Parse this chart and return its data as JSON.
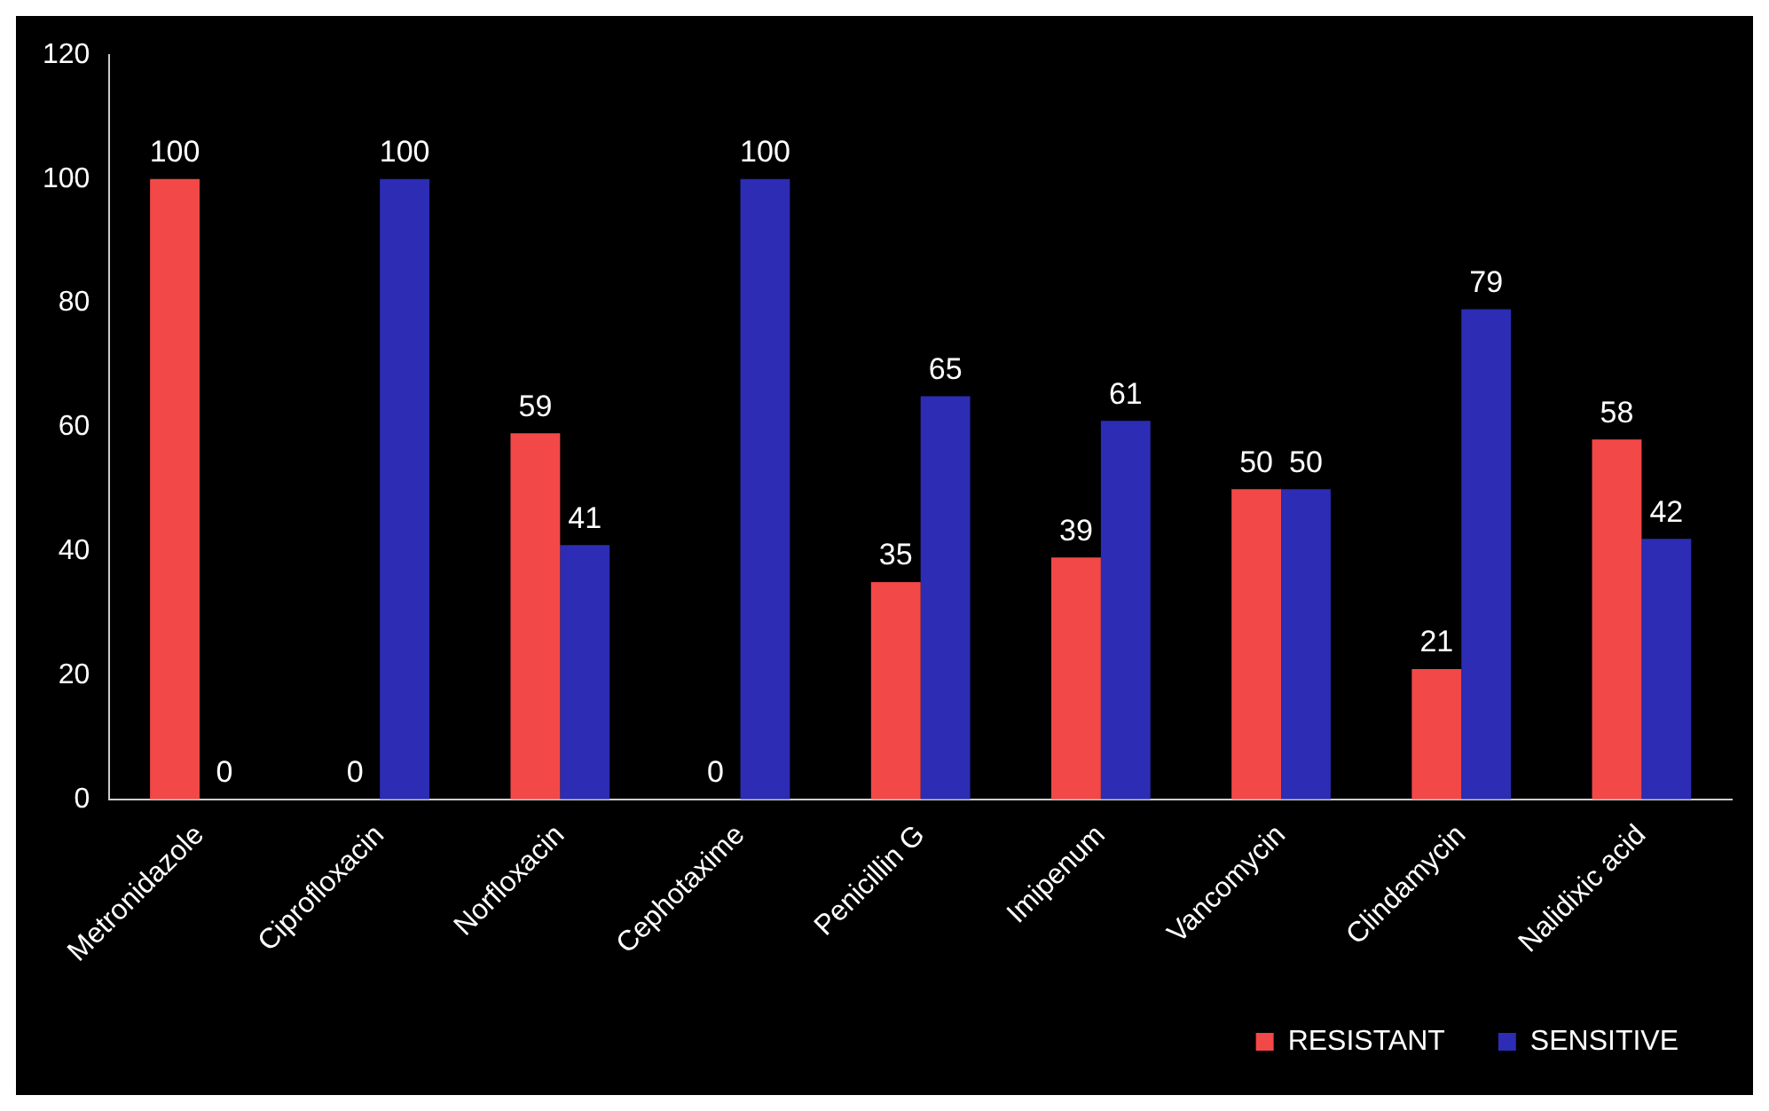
{
  "chart_data": {
    "type": "bar",
    "categories": [
      "Metronidazole",
      "Ciprofloxacin",
      "Norfloxacin",
      "Cephotaxime",
      "Penicillin G",
      "Imipenum",
      "Vancomycin",
      "Clindamycin",
      "Nalidixic acid"
    ],
    "series": [
      {
        "name": "RESISTANT",
        "color": "#f24848",
        "values": [
          100,
          0,
          59,
          0,
          35,
          39,
          50,
          21,
          58
        ]
      },
      {
        "name": "SENSITIVE",
        "color": "#2c2cb4",
        "values": [
          0,
          100,
          41,
          100,
          65,
          61,
          50,
          79,
          42
        ]
      }
    ],
    "ylim": [
      0,
      120
    ],
    "yticks": [
      0,
      20,
      40,
      60,
      80,
      100,
      120
    ],
    "data_labels": true,
    "grid": false,
    "legend": "bottom right"
  }
}
